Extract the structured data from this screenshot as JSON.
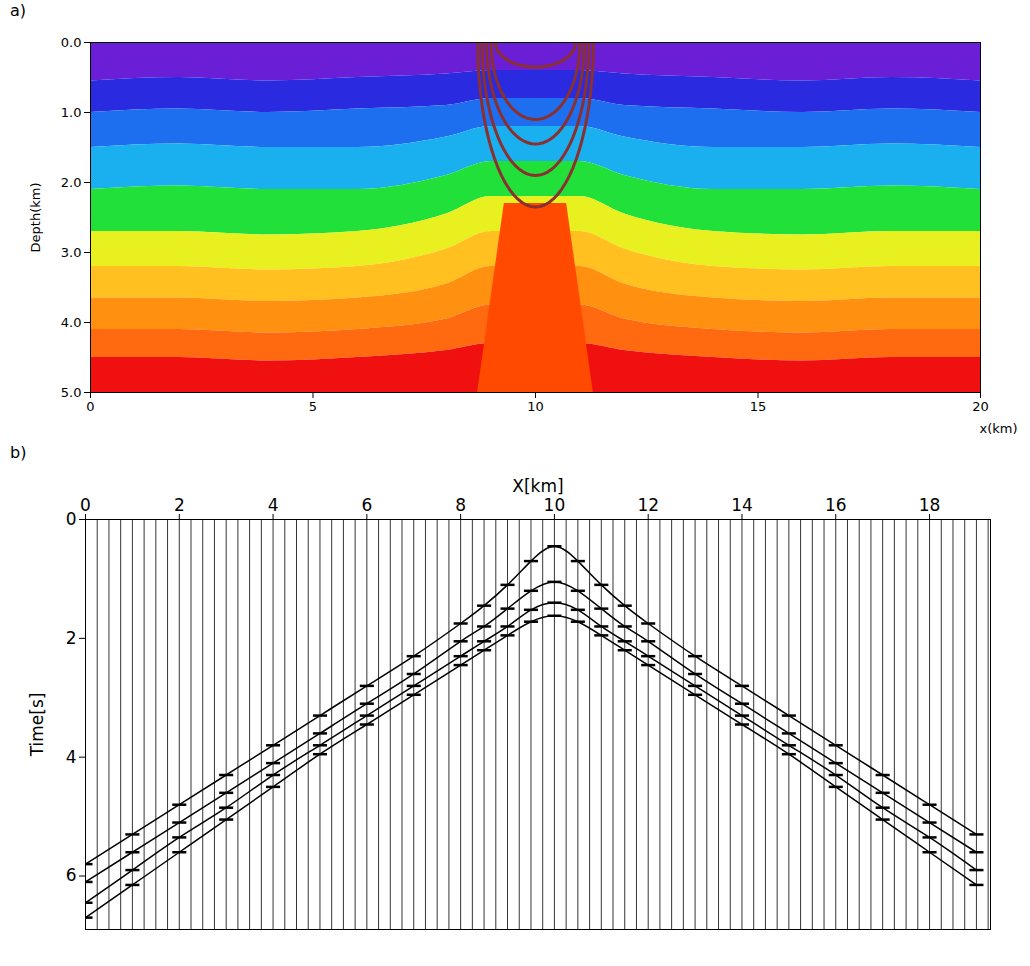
{
  "chart_data": [
    {
      "type": "velocity_model",
      "panel": "a)",
      "xlabel": "x(km)",
      "ylabel": "Depth(km)",
      "xlim": [
        0,
        20
      ],
      "ylim": [
        0,
        5
      ],
      "xticks": [
        0,
        5,
        10,
        15,
        20
      ],
      "yticks": [
        {
          "value": 0,
          "label": "0.0"
        },
        {
          "value": 1,
          "label": "1.0"
        },
        {
          "value": 2,
          "label": "2.0"
        },
        {
          "value": 3,
          "label": "3.0"
        },
        {
          "value": 4,
          "label": "4.0"
        },
        {
          "value": 5,
          "label": "5.0"
        }
      ],
      "x": [
        0,
        2,
        4,
        6,
        8,
        9,
        10,
        11,
        12,
        14,
        16,
        18,
        20
      ],
      "layers": [
        {
          "color": "#6a1fd6",
          "top": [
            0,
            0,
            0,
            0,
            0,
            0,
            0,
            0,
            0,
            0,
            0,
            0,
            0
          ]
        },
        {
          "color": "#2a2ae0",
          "top": [
            0.55,
            0.5,
            0.55,
            0.5,
            0.45,
            0.4,
            0.4,
            0.4,
            0.45,
            0.5,
            0.55,
            0.5,
            0.55
          ]
        },
        {
          "color": "#1e6ef0",
          "top": [
            1.0,
            0.95,
            1.0,
            0.95,
            0.9,
            0.8,
            0.8,
            0.8,
            0.9,
            0.95,
            1.0,
            0.95,
            1.0
          ]
        },
        {
          "color": "#1ab0f0",
          "top": [
            1.5,
            1.45,
            1.5,
            1.5,
            1.35,
            1.2,
            1.2,
            1.2,
            1.35,
            1.5,
            1.5,
            1.45,
            1.5
          ]
        },
        {
          "color": "#22e03a",
          "top": [
            2.1,
            2.05,
            2.1,
            2.1,
            1.9,
            1.7,
            1.7,
            1.7,
            1.9,
            2.1,
            2.1,
            2.05,
            2.1
          ]
        },
        {
          "color": "#e8f020",
          "top": [
            2.7,
            2.7,
            2.75,
            2.7,
            2.45,
            2.2,
            2.2,
            2.2,
            2.45,
            2.7,
            2.75,
            2.7,
            2.7
          ]
        },
        {
          "color": "#ffc020",
          "top": [
            3.2,
            3.2,
            3.25,
            3.2,
            2.95,
            2.7,
            2.7,
            2.7,
            2.95,
            3.2,
            3.25,
            3.2,
            3.2
          ]
        },
        {
          "color": "#ff9010",
          "top": [
            3.65,
            3.65,
            3.7,
            3.65,
            3.45,
            3.2,
            3.2,
            3.2,
            3.45,
            3.65,
            3.7,
            3.65,
            3.65
          ]
        },
        {
          "color": "#ff6a10",
          "top": [
            4.1,
            4.1,
            4.15,
            4.1,
            3.95,
            3.75,
            3.75,
            3.75,
            3.95,
            4.1,
            4.15,
            4.1,
            4.1
          ]
        },
        {
          "color": "#f01010",
          "top": [
            4.5,
            4.5,
            4.55,
            4.5,
            4.4,
            4.3,
            4.3,
            4.3,
            4.4,
            4.5,
            4.55,
            4.5,
            4.5
          ]
        }
      ],
      "salt": {
        "color": "#ff4a00",
        "depth": [
          2.3,
          5
        ],
        "left": [
          9.3,
          8.7
        ],
        "right": [
          10.7,
          11.3
        ]
      },
      "wavefronts": {
        "color": "#8b3030",
        "source_x": 10,
        "half_width": [
          0.9,
          1.0,
          1.1,
          1.2,
          1.3
        ],
        "depth": [
          0.35,
          1.1,
          1.45,
          1.9,
          2.35
        ]
      }
    },
    {
      "type": "wiggle",
      "panel": "b)",
      "xlabel": "X[km]",
      "ylabel": "Time[s]",
      "xlim": [
        0,
        19.3
      ],
      "ylim": [
        0,
        6.9
      ],
      "xticks": [
        0,
        2,
        4,
        6,
        8,
        10,
        12,
        14,
        16,
        18
      ],
      "yticks": [
        0,
        2,
        4,
        6
      ],
      "trace_x": [
        0,
        0.25,
        0.5,
        0.75,
        1,
        1.25,
        1.5,
        1.75,
        2,
        2.25,
        2.5,
        2.75,
        3,
        3.25,
        3.5,
        3.75,
        4,
        4.25,
        4.5,
        4.75,
        5,
        5.25,
        5.5,
        5.75,
        6,
        6.25,
        6.5,
        6.75,
        7,
        7.25,
        7.5,
        7.75,
        8,
        8.25,
        8.5,
        8.75,
        9,
        9.25,
        9.5,
        9.75,
        10,
        10.25,
        10.5,
        10.75,
        11,
        11.25,
        11.5,
        11.75,
        12,
        12.25,
        12.5,
        12.75,
        13,
        13.25,
        13.5,
        13.75,
        14,
        14.25,
        14.5,
        14.75,
        15,
        15.25,
        15.5,
        15.75,
        16,
        16.25,
        16.5,
        16.75,
        17,
        17.25,
        17.5,
        17.75,
        18,
        18.25,
        18.5,
        18.75,
        19,
        19.25
      ],
      "x": [
        0,
        1,
        2,
        3,
        4,
        5,
        6,
        7,
        8,
        8.5,
        9,
        9.5,
        10,
        10.5,
        11,
        11.5,
        12,
        13,
        14,
        15,
        16,
        17,
        18,
        19
      ],
      "events": [
        [
          5.8,
          5.3,
          4.8,
          4.3,
          3.8,
          3.3,
          2.8,
          2.3,
          1.75,
          1.45,
          1.1,
          0.7,
          0.45,
          0.7,
          1.1,
          1.45,
          1.75,
          2.3,
          2.8,
          3.3,
          3.8,
          4.3,
          4.8,
          5.3
        ],
        [
          6.1,
          5.6,
          5.1,
          4.6,
          4.1,
          3.6,
          3.1,
          2.6,
          2.05,
          1.8,
          1.5,
          1.2,
          1.05,
          1.2,
          1.5,
          1.8,
          2.05,
          2.6,
          3.1,
          3.6,
          4.1,
          4.6,
          5.1,
          5.6
        ],
        [
          6.45,
          5.9,
          5.35,
          4.85,
          4.3,
          3.8,
          3.3,
          2.8,
          2.3,
          2.05,
          1.8,
          1.52,
          1.4,
          1.52,
          1.8,
          2.05,
          2.3,
          2.8,
          3.3,
          3.8,
          4.3,
          4.85,
          5.35,
          5.9
        ],
        [
          6.7,
          6.15,
          5.6,
          5.05,
          4.5,
          3.95,
          3.45,
          2.95,
          2.45,
          2.2,
          1.95,
          1.72,
          1.62,
          1.72,
          1.95,
          2.2,
          2.45,
          2.95,
          3.45,
          3.95,
          4.5,
          5.05,
          5.6,
          6.15
        ]
      ],
      "color": "#000000"
    }
  ]
}
